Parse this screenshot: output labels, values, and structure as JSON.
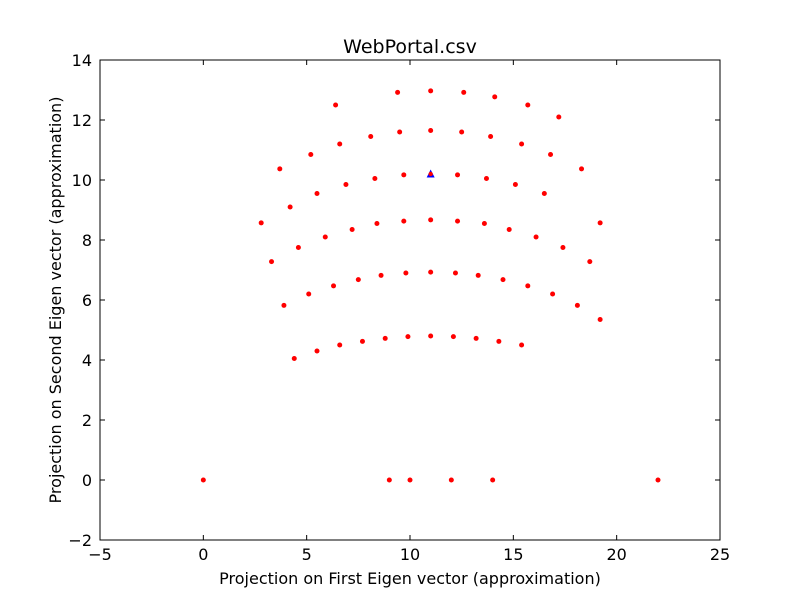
{
  "chart_data": {
    "type": "scatter",
    "title": "WebPortal.csv",
    "xlabel": "Projection on First Eigen vector (approximation)",
    "ylabel": "Projection on Second Eigen vector (approximation)",
    "xlim": [
      -5,
      25
    ],
    "ylim": [
      -2,
      14
    ],
    "xticks": [
      -5,
      0,
      5,
      10,
      15,
      20,
      25
    ],
    "xtick_labels": [
      "−5",
      "0",
      "5",
      "10",
      "15",
      "20",
      "25"
    ],
    "yticks": [
      -2,
      0,
      2,
      4,
      6,
      8,
      10,
      12,
      14
    ],
    "ytick_labels": [
      "−2",
      "0",
      "2",
      "4",
      "6",
      "8",
      "10",
      "12",
      "14"
    ],
    "grid": false,
    "marker_color": "#ff0000",
    "highlight_color": "#0000ff",
    "points": [
      [
        0,
        0
      ],
      [
        9,
        0
      ],
      [
        10,
        0
      ],
      [
        12,
        0
      ],
      [
        14,
        0
      ],
      [
        22,
        0
      ],
      [
        4.4,
        4.05
      ],
      [
        5.5,
        4.3
      ],
      [
        6.6,
        4.5
      ],
      [
        7.7,
        4.62
      ],
      [
        8.8,
        4.72
      ],
      [
        9.9,
        4.78
      ],
      [
        11.0,
        4.8
      ],
      [
        12.1,
        4.78
      ],
      [
        13.2,
        4.72
      ],
      [
        14.3,
        4.62
      ],
      [
        15.4,
        4.5
      ],
      [
        3.9,
        5.82
      ],
      [
        5.1,
        6.2
      ],
      [
        6.3,
        6.47
      ],
      [
        7.5,
        6.68
      ],
      [
        8.6,
        6.82
      ],
      [
        9.8,
        6.9
      ],
      [
        11.0,
        6.93
      ],
      [
        12.2,
        6.9
      ],
      [
        13.3,
        6.82
      ],
      [
        14.5,
        6.68
      ],
      [
        15.7,
        6.47
      ],
      [
        16.9,
        6.2
      ],
      [
        18.1,
        5.82
      ],
      [
        19.2,
        5.35
      ],
      [
        3.3,
        7.28
      ],
      [
        4.6,
        7.75
      ],
      [
        5.9,
        8.1
      ],
      [
        7.2,
        8.35
      ],
      [
        8.4,
        8.55
      ],
      [
        9.7,
        8.63
      ],
      [
        11.0,
        8.67
      ],
      [
        12.3,
        8.63
      ],
      [
        13.6,
        8.55
      ],
      [
        14.8,
        8.35
      ],
      [
        16.1,
        8.1
      ],
      [
        17.4,
        7.75
      ],
      [
        18.7,
        7.28
      ],
      [
        2.8,
        8.57
      ],
      [
        19.2,
        8.57
      ],
      [
        4.2,
        9.1
      ],
      [
        5.5,
        9.55
      ],
      [
        6.9,
        9.85
      ],
      [
        8.3,
        10.05
      ],
      [
        9.7,
        10.17
      ],
      [
        12.3,
        10.17
      ],
      [
        13.7,
        10.05
      ],
      [
        15.1,
        9.85
      ],
      [
        16.5,
        9.55
      ],
      [
        3.7,
        10.37
      ],
      [
        18.3,
        10.37
      ],
      [
        5.2,
        10.85
      ],
      [
        6.6,
        11.2
      ],
      [
        8.1,
        11.45
      ],
      [
        9.5,
        11.6
      ],
      [
        11.0,
        11.65
      ],
      [
        12.5,
        11.6
      ],
      [
        13.9,
        11.45
      ],
      [
        15.4,
        11.2
      ],
      [
        16.8,
        10.85
      ],
      [
        6.4,
        12.5
      ],
      [
        9.4,
        12.92
      ],
      [
        11.0,
        12.97
      ],
      [
        12.6,
        12.92
      ],
      [
        14.1,
        12.77
      ],
      [
        15.7,
        12.5
      ],
      [
        17.2,
        12.1
      ]
    ],
    "highlight_points": [
      [
        11.0,
        10.2
      ]
    ]
  }
}
